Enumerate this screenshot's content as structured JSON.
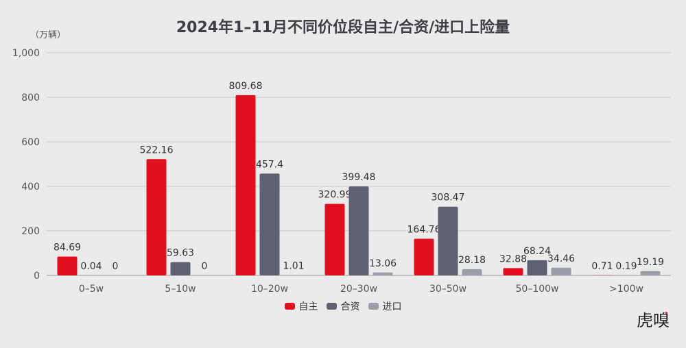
{
  "chart_data": {
    "type": "bar",
    "title": "2024年1–11月不同价位段自主/合资/进口上险量",
    "ylabel": "（万辆）",
    "xlabel": "",
    "ylim": [
      0,
      1000
    ],
    "yticks": [
      0,
      200,
      400,
      600,
      800,
      1000
    ],
    "ytick_labels": [
      "0",
      "200",
      "400",
      "600",
      "800",
      "1,000"
    ],
    "grid": true,
    "legend_position": "bottom",
    "categories": [
      "0–5w",
      "5–10w",
      "10–20w",
      "20–30w",
      "30–50w",
      "50–100w",
      ">100w"
    ],
    "series": [
      {
        "name": "自主",
        "color": "#e0101e",
        "values": [
          84.69,
          522.16,
          809.68,
          320.99,
          164.76,
          32.88,
          0.71
        ]
      },
      {
        "name": "合资",
        "color": "#5e6173",
        "values": [
          0.04,
          59.63,
          457.4,
          399.48,
          308.47,
          68.24,
          0.19
        ]
      },
      {
        "name": "进口",
        "color": "#9b9da8",
        "values": [
          0,
          0,
          1.01,
          13.06,
          28.18,
          34.46,
          19.19
        ]
      }
    ]
  },
  "watermark": "虎嗅"
}
